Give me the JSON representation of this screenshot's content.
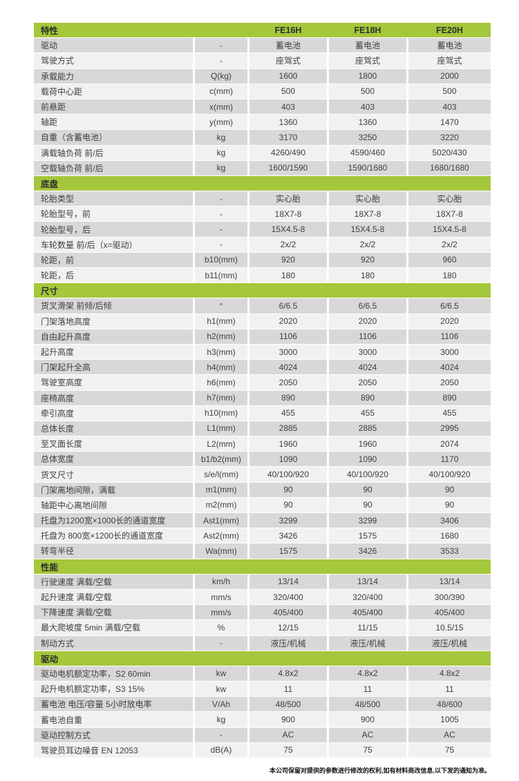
{
  "page": {
    "footer_note": "本公司保留对提供的参数进行修改的权利,如有材料商改信息,以下发的通知为准。"
  },
  "colors": {
    "header_green": "#a5c73b",
    "row_gray": "#d8d8d8",
    "row_light": "#f1f1ef",
    "text_dark": "#3e3e3c"
  },
  "table": {
    "header": {
      "feature_label": "特性",
      "unit_label": "",
      "models": [
        "FE16H",
        "FE18H",
        "FE20H"
      ]
    },
    "sections": [
      {
        "title": "",
        "rows": [
          {
            "label": "驱动",
            "unit": "-",
            "values": [
              "蓄电池",
              "蓄电池",
              "蓄电池"
            ]
          },
          {
            "label": "驾驶方式",
            "unit": "-",
            "values": [
              "座驾式",
              "座驾式",
              "座驾式"
            ]
          },
          {
            "label": "承载能力",
            "unit": "Q(kg)",
            "values": [
              "1600",
              "1800",
              "2000"
            ]
          },
          {
            "label": "载荷中心距",
            "unit": "c(mm)",
            "values": [
              "500",
              "500",
              "500"
            ]
          },
          {
            "label": "前悬距",
            "unit": "x(mm)",
            "values": [
              "403",
              "403",
              "403"
            ]
          },
          {
            "label": "轴距",
            "unit": "y(mm)",
            "values": [
              "1360",
              "1360",
              "1470"
            ]
          },
          {
            "label": "自重（含蓄电池）",
            "unit": "kg",
            "values": [
              "3170",
              "3250",
              "3220"
            ]
          },
          {
            "label": "满载轴负荷 前/后",
            "unit": "kg",
            "values": [
              "4260/490",
              "4590/460",
              "5020/430"
            ]
          },
          {
            "label": "空载轴负荷 前/后",
            "unit": "kg",
            "values": [
              "1600/1590",
              "1590/1680",
              "1680/1680"
            ]
          }
        ]
      },
      {
        "title": "底盘",
        "rows": [
          {
            "label": "轮胎类型",
            "unit": "-",
            "values": [
              "实心胎",
              "实心胎",
              "实心胎"
            ]
          },
          {
            "label": "轮胎型号，前",
            "unit": "-",
            "values": [
              "18X7-8",
              "18X7-8",
              "18X7-8"
            ]
          },
          {
            "label": "轮胎型号，后",
            "unit": "-",
            "values": [
              "15X4.5-8",
              "15X4.5-8",
              "15X4.5-8"
            ]
          },
          {
            "label": "车轮数量 前/后（x=驱动）",
            "unit": "-",
            "values": [
              "2x/2",
              "2x/2",
              "2x/2"
            ]
          },
          {
            "label": "轮距，前",
            "unit": "b10(mm)",
            "values": [
              "920",
              "920",
              "960"
            ]
          },
          {
            "label": "轮距，后",
            "unit": "b11(mm)",
            "values": [
              "180",
              "180",
              "180"
            ]
          }
        ]
      },
      {
        "title": "尺寸",
        "rows": [
          {
            "label": "货叉滑架 前倾/后倾",
            "unit": "°",
            "values": [
              "6/6.5",
              "6/6.5",
              "6/6.5"
            ]
          },
          {
            "label": "门架落地高度",
            "unit": "h1(mm)",
            "values": [
              "2020",
              "2020",
              "2020"
            ]
          },
          {
            "label": "自由起升高度",
            "unit": "h2(mm)",
            "values": [
              "1106",
              "1106",
              "1106"
            ]
          },
          {
            "label": "起升高度",
            "unit": "h3(mm)",
            "values": [
              "3000",
              "3000",
              "3000"
            ]
          },
          {
            "label": "门架起升全高",
            "unit": "h4(mm)",
            "values": [
              "4024",
              "4024",
              "4024"
            ]
          },
          {
            "label": "驾驶室高度",
            "unit": "h6(mm)",
            "values": [
              "2050",
              "2050",
              "2050"
            ]
          },
          {
            "label": "座椅高度",
            "unit": "h7(mm)",
            "values": [
              "890",
              "890",
              "890"
            ]
          },
          {
            "label": "牵引高度",
            "unit": "h10(mm)",
            "values": [
              "455",
              "455",
              "455"
            ]
          },
          {
            "label": "总体长度",
            "unit": "L1(mm)",
            "values": [
              "2885",
              "2885",
              "2995"
            ]
          },
          {
            "label": "至叉面长度",
            "unit": "L2(mm)",
            "values": [
              "1960",
              "1960",
              "2074"
            ]
          },
          {
            "label": "总体宽度",
            "unit": "b1/b2(mm)",
            "values": [
              "1090",
              "1090",
              "1170"
            ]
          },
          {
            "label": "货叉尺寸",
            "unit": "s/e/l(mm)",
            "values": [
              "40/100/920",
              "40/100/920",
              "40/100/920"
            ]
          },
          {
            "label": "门架离地间隙，满载",
            "unit": "m1(mm)",
            "values": [
              "90",
              "90",
              "90"
            ]
          },
          {
            "label": "轴距中心离地间隙",
            "unit": "m2(mm)",
            "values": [
              "90",
              "90",
              "90"
            ]
          },
          {
            "label": "托盘为1200宽×1000长的通道宽度",
            "unit": "Ast1(mm)",
            "values": [
              "3299",
              "3299",
              "3406"
            ]
          },
          {
            "label": "托盘为 800宽×1200长的通道宽度",
            "unit": "Ast2(mm)",
            "values": [
              "3426",
              "1575",
              "1680"
            ]
          },
          {
            "label": "转弯半径",
            "unit": "Wa(mm)",
            "values": [
              "1575",
              "3426",
              "3533"
            ]
          }
        ]
      },
      {
        "title": "性能",
        "rows": [
          {
            "label": "行驶速度 满载/空载",
            "unit": "km/h",
            "values": [
              "13/14",
              "13/14",
              "13/14"
            ]
          },
          {
            "label": "起升速度 满载/空载",
            "unit": "mm/s",
            "values": [
              "320/400",
              "320/400",
              "300/390"
            ]
          },
          {
            "label": "下降速度 满载/空载",
            "unit": "mm/s",
            "values": [
              "405/400",
              "405/400",
              "405/400"
            ]
          },
          {
            "label": "最大爬坡度 5min 满载/空载",
            "unit": "%",
            "values": [
              "12/15",
              "11/15",
              "10.5/15"
            ]
          },
          {
            "label": "制动方式",
            "unit": "-",
            "values": [
              "液压/机械",
              "液压/机械",
              "液压/机械"
            ]
          }
        ]
      },
      {
        "title": "驱动",
        "rows": [
          {
            "label": "驱动电机额定功率，S2 60min",
            "unit": "kw",
            "values": [
              "4.8x2",
              "4.8x2",
              "4.8x2"
            ]
          },
          {
            "label": "起升电机额定功率，S3 15%",
            "unit": "kw",
            "values": [
              "11",
              "11",
              "11"
            ]
          },
          {
            "label": "蓄电池 电压/容量 5小时放电率",
            "unit": "V/Ah",
            "values": [
              "48/500",
              "48/500",
              "48/600"
            ]
          },
          {
            "label": "蓄电池自重",
            "unit": "kg",
            "values": [
              "900",
              "900",
              "1005"
            ]
          },
          {
            "label": "驱动控制方式",
            "unit": "-",
            "values": [
              "AC",
              "AC",
              "AC"
            ]
          },
          {
            "label": "驾驶员耳边噪音 EN 12053",
            "unit": "dB(A)",
            "values": [
              "75",
              "75",
              "75"
            ]
          }
        ]
      }
    ]
  }
}
